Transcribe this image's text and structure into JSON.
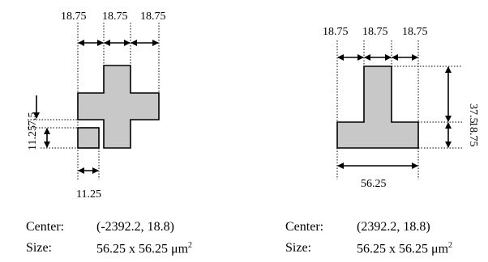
{
  "left": {
    "dims_top": [
      "18.75",
      "18.75",
      "18.75"
    ],
    "dim_side_a": "7.5",
    "dim_side_b": "11.25",
    "dim_bottom": "11.25",
    "center_label": "Center:",
    "center_value": "(-2392.2, 18.8)",
    "size_label": "Size:",
    "size_value": "56.25 x 56.25 μm",
    "size_unit_power": "2"
  },
  "right": {
    "dims_top": [
      "18.75",
      "18.75",
      "18.75"
    ],
    "dim_right_a": "37.5",
    "dim_right_b": "18.75",
    "dim_bottom": "56.25",
    "center_label": "Center:",
    "center_value": "(2392.2, 18.8)",
    "size_label": "Size:",
    "size_value": "56.25 x 56.25 μm",
    "size_unit_power": "2"
  }
}
